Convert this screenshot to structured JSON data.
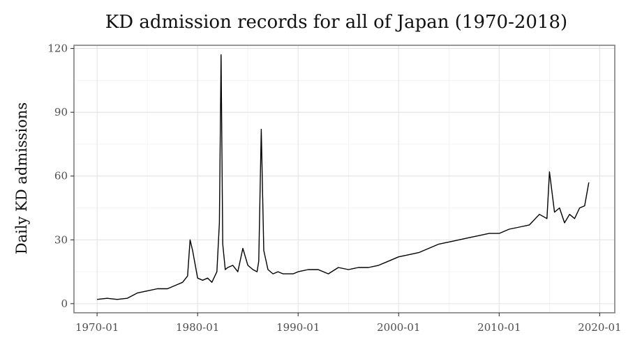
{
  "chart_data": {
    "type": "line",
    "title": "KD admission records for all of Japan (1970-2018)",
    "xlabel": "",
    "ylabel": "Daily KD admissions",
    "xlim": [
      "1970-01",
      "2020-01"
    ],
    "ylim": [
      0,
      120
    ],
    "x_ticks": [
      "1970-01",
      "1980-01",
      "1990-01",
      "2000-01",
      "2010-01",
      "2020-01"
    ],
    "y_ticks": [
      0,
      30,
      60,
      90,
      120
    ],
    "grid": true,
    "legend": "none",
    "series": [
      {
        "color": "#000000",
        "x": [
          "1970-01",
          "1971-01",
          "1972-01",
          "1973-01",
          "1974-01",
          "1975-01",
          "1976-01",
          "1977-01",
          "1978-01",
          "1978-07",
          "1979-01",
          "1979-04",
          "1979-07",
          "1980-01",
          "1980-07",
          "1981-01",
          "1981-06",
          "1981-12",
          "1982-03",
          "1982-05",
          "1982-07",
          "1982-10",
          "1983-01",
          "1983-07",
          "1984-01",
          "1984-07",
          "1985-01",
          "1985-07",
          "1985-12",
          "1986-02",
          "1986-05",
          "1986-08",
          "1987-01",
          "1987-07",
          "1988-01",
          "1988-07",
          "1989-01",
          "1989-07",
          "1990-01",
          "1991-01",
          "1992-01",
          "1993-01",
          "1994-01",
          "1995-01",
          "1996-01",
          "1997-01",
          "1998-01",
          "1999-01",
          "2000-01",
          "2001-01",
          "2002-01",
          "2003-01",
          "2004-01",
          "2005-01",
          "2006-01",
          "2007-01",
          "2008-01",
          "2009-01",
          "2010-01",
          "2011-01",
          "2012-01",
          "2013-01",
          "2014-01",
          "2014-10",
          "2015-01",
          "2015-07",
          "2016-01",
          "2016-07",
          "2017-01",
          "2017-07",
          "2018-01",
          "2018-07",
          "2018-12"
        ],
        "y": [
          2,
          2.5,
          2,
          2.5,
          5,
          6,
          7,
          7,
          9,
          10,
          13,
          30,
          25,
          12,
          11,
          12,
          10,
          15,
          38,
          117,
          28,
          16,
          17,
          18,
          15,
          26,
          18,
          16,
          15,
          20,
          82,
          25,
          16,
          14,
          15,
          14,
          14,
          14,
          15,
          16,
          16,
          14,
          17,
          16,
          17,
          17,
          18,
          20,
          22,
          23,
          24,
          26,
          28,
          29,
          30,
          31,
          32,
          33,
          33,
          35,
          36,
          37,
          42,
          40,
          62,
          43,
          45,
          38,
          42,
          40,
          45,
          46,
          57
        ]
      }
    ]
  }
}
